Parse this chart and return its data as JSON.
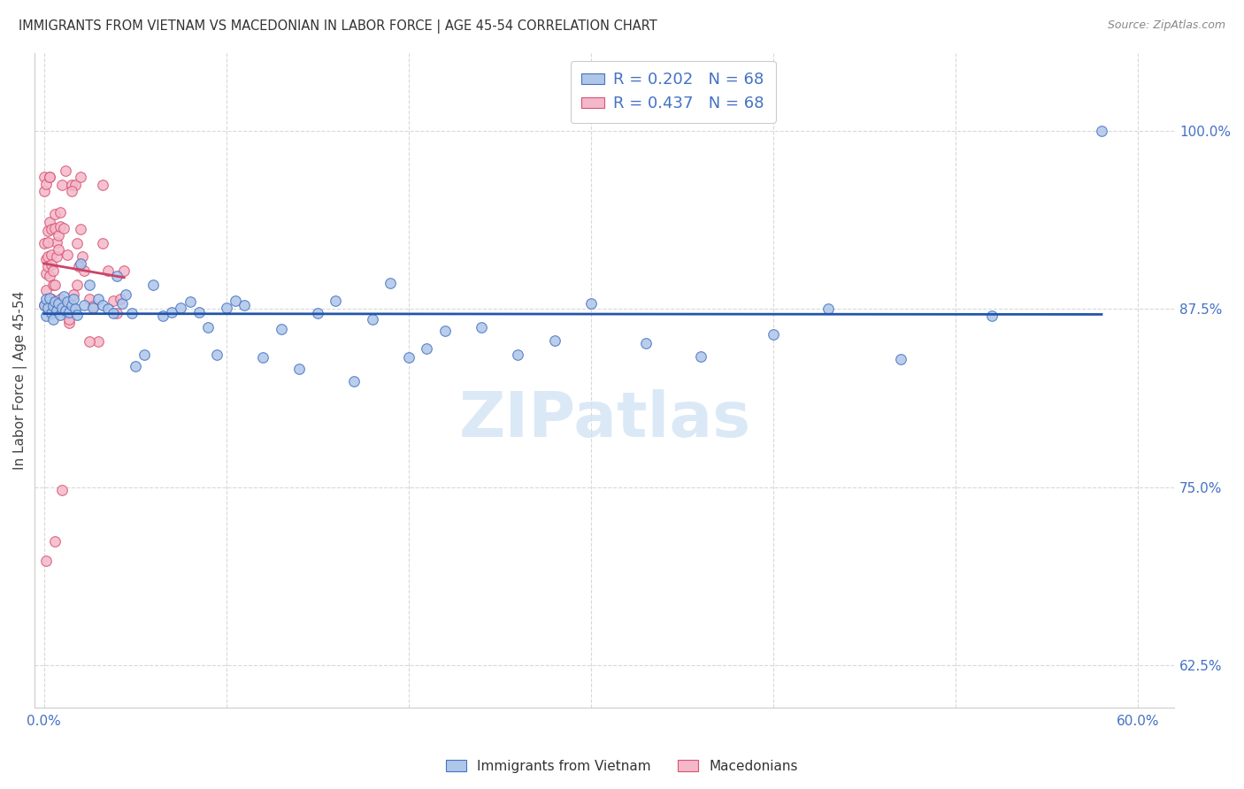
{
  "title": "IMMIGRANTS FROM VIETNAM VS MACEDONIAN IN LABOR FORCE | AGE 45-54 CORRELATION CHART",
  "source": "Source: ZipAtlas.com",
  "ylabel_label": "In Labor Force | Age 45-54",
  "background_color": "#ffffff",
  "grid_color": "#d8d8d8",
  "grid_style": "--",
  "title_color": "#333333",
  "tick_label_color": "#4472c4",
  "watermark_text": "ZIPatlas",
  "watermark_color": "#cde0f5",
  "viet_color": "#aec6e8",
  "viet_edge": "#4472c4",
  "mac_color": "#f4b8cb",
  "mac_edge": "#d9536f",
  "viet_line_color": "#2255aa",
  "mac_line_color": "#cc4466",
  "viet_R": 0.202,
  "viet_N": 68,
  "mac_R": 0.437,
  "mac_N": 68,
  "xlim": [
    -0.005,
    0.62
  ],
  "ylim": [
    0.595,
    1.055
  ],
  "x_tick_pos": [
    0.0,
    0.1,
    0.2,
    0.3,
    0.4,
    0.5,
    0.6
  ],
  "x_tick_labels": [
    "0.0%",
    "",
    "",
    "",
    "",
    "",
    "60.0%"
  ],
  "y_tick_pos": [
    0.625,
    0.75,
    0.875,
    1.0
  ],
  "y_tick_labels": [
    "62.5%",
    "75.0%",
    "87.5%",
    "100.0%"
  ],
  "viet_scatter_x": [
    0.0,
    0.001,
    0.001,
    0.002,
    0.003,
    0.004,
    0.005,
    0.005,
    0.006,
    0.007,
    0.008,
    0.009,
    0.01,
    0.011,
    0.012,
    0.013,
    0.014,
    0.015,
    0.016,
    0.017,
    0.018,
    0.02,
    0.022,
    0.025,
    0.027,
    0.03,
    0.032,
    0.035,
    0.038,
    0.04,
    0.043,
    0.045,
    0.048,
    0.05,
    0.055,
    0.06,
    0.065,
    0.07,
    0.075,
    0.08,
    0.085,
    0.09,
    0.095,
    0.1,
    0.105,
    0.11,
    0.12,
    0.13,
    0.14,
    0.15,
    0.16,
    0.17,
    0.18,
    0.19,
    0.2,
    0.21,
    0.22,
    0.24,
    0.26,
    0.28,
    0.3,
    0.33,
    0.36,
    0.4,
    0.43,
    0.47,
    0.52,
    0.58
  ],
  "viet_scatter_y": [
    0.878,
    0.882,
    0.87,
    0.876,
    0.883,
    0.872,
    0.877,
    0.868,
    0.88,
    0.874,
    0.879,
    0.871,
    0.876,
    0.884,
    0.874,
    0.88,
    0.873,
    0.878,
    0.882,
    0.875,
    0.871,
    0.907,
    0.878,
    0.892,
    0.876,
    0.882,
    0.878,
    0.875,
    0.872,
    0.898,
    0.879,
    0.885,
    0.872,
    0.835,
    0.843,
    0.892,
    0.87,
    0.873,
    0.876,
    0.88,
    0.873,
    0.862,
    0.843,
    0.876,
    0.881,
    0.878,
    0.841,
    0.861,
    0.833,
    0.872,
    0.881,
    0.824,
    0.868,
    0.893,
    0.841,
    0.847,
    0.86,
    0.862,
    0.843,
    0.853,
    0.879,
    0.851,
    0.842,
    0.857,
    0.875,
    0.84,
    0.87,
    1.0
  ],
  "mac_scatter_x": [
    0.0,
    0.0,
    0.0,
    0.0,
    0.001,
    0.001,
    0.001,
    0.002,
    0.002,
    0.002,
    0.003,
    0.003,
    0.003,
    0.004,
    0.004,
    0.004,
    0.005,
    0.005,
    0.005,
    0.006,
    0.006,
    0.007,
    0.007,
    0.008,
    0.008,
    0.009,
    0.009,
    0.01,
    0.011,
    0.012,
    0.013,
    0.014,
    0.015,
    0.016,
    0.017,
    0.018,
    0.019,
    0.02,
    0.021,
    0.022,
    0.025,
    0.027,
    0.03,
    0.032,
    0.035,
    0.038,
    0.04,
    0.042,
    0.044,
    0.015,
    0.008,
    0.004,
    0.002,
    0.001,
    0.003,
    0.006,
    0.009,
    0.012,
    0.02,
    0.025,
    0.032,
    0.018,
    0.01,
    0.014,
    0.006,
    0.003,
    0.001,
    0.002
  ],
  "mac_scatter_y": [
    0.878,
    0.968,
    0.958,
    0.921,
    0.91,
    0.9,
    0.888,
    0.93,
    0.912,
    0.905,
    0.882,
    0.936,
    0.898,
    0.931,
    0.913,
    0.906,
    0.902,
    0.892,
    0.877,
    0.942,
    0.932,
    0.922,
    0.912,
    0.927,
    0.917,
    0.943,
    0.933,
    0.962,
    0.932,
    0.972,
    0.913,
    0.865,
    0.962,
    0.885,
    0.962,
    0.921,
    0.905,
    0.931,
    0.912,
    0.902,
    0.882,
    0.877,
    0.852,
    0.921,
    0.902,
    0.881,
    0.872,
    0.882,
    0.902,
    0.958,
    0.878,
    0.882,
    0.878,
    0.963,
    0.968,
    0.892,
    0.882,
    0.872,
    0.968,
    0.852,
    0.962,
    0.892,
    0.748,
    0.868,
    0.712,
    0.968,
    0.698,
    0.922
  ]
}
